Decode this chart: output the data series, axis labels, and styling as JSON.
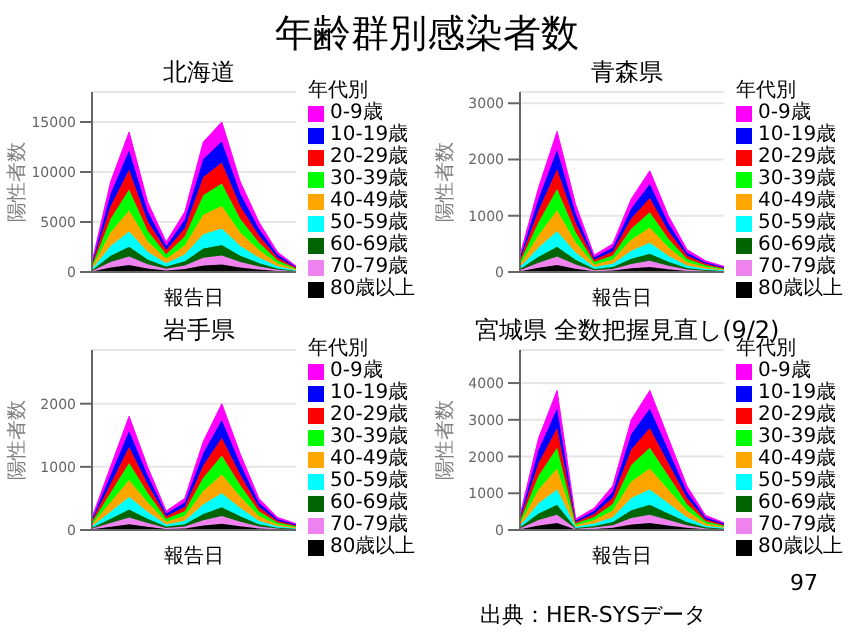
{
  "chart_data": [
    {
      "type": "other",
      "title": "年齢群別感染者数",
      "annotations": [
        "出典：HER-SYSデータ",
        "97"
      ]
    },
    {
      "type": "area",
      "title": "北海道",
      "xlabel": "報告日",
      "ylabel": "陽性者数",
      "legend_title": "年代別",
      "stacked": true,
      "grid": "y",
      "legend": "right",
      "tick_labels": "y",
      "categories": [
        null,
        null,
        null,
        null,
        null,
        null,
        null,
        null,
        null,
        null,
        null,
        null
      ],
      "ylim": [
        0,
        18000
      ],
      "yticks": [
        0,
        5000,
        10000,
        15000
      ],
      "series": [
        {
          "name": "80歳以上",
          "color": "#000000",
          "values": [
            50,
            450,
            700,
            350,
            150,
            300,
            650,
            750,
            450,
            250,
            100,
            30
          ]
        },
        {
          "name": "70-79歳",
          "color": "#ee82ee",
          "values": [
            60,
            540,
            840,
            420,
            180,
            360,
            780,
            900,
            540,
            300,
            120,
            36
          ]
        },
        {
          "name": "60-69歳",
          "color": "#006400",
          "values": [
            70,
            630,
            980,
            490,
            210,
            420,
            910,
            1050,
            630,
            350,
            140,
            42
          ]
        },
        {
          "name": "50-59歳",
          "color": "#00ffff",
          "values": [
            110,
            990,
            1540,
            770,
            330,
            660,
            1430,
            1650,
            990,
            550,
            220,
            66
          ]
        },
        {
          "name": "40-49歳",
          "color": "#ffa500",
          "values": [
            150,
            1350,
            2100,
            1050,
            450,
            900,
            1950,
            2250,
            1350,
            750,
            300,
            90
          ]
        },
        {
          "name": "30-39歳",
          "color": "#00ff00",
          "values": [
            150,
            1350,
            2100,
            1050,
            450,
            900,
            1950,
            2250,
            1350,
            750,
            300,
            90
          ]
        },
        {
          "name": "20-29歳",
          "color": "#ff0000",
          "values": [
            140,
            1260,
            1960,
            980,
            420,
            840,
            1820,
            2100,
            1260,
            700,
            280,
            84
          ]
        },
        {
          "name": "10-19歳",
          "color": "#0000ff",
          "values": [
            140,
            1260,
            1960,
            980,
            420,
            840,
            1820,
            2100,
            1260,
            700,
            280,
            84
          ]
        },
        {
          "name": "0-9歳",
          "color": "#ff00ff",
          "values": [
            130,
            1170,
            1820,
            910,
            390,
            780,
            1690,
            1950,
            1170,
            650,
            260,
            78
          ]
        }
      ]
    },
    {
      "type": "area",
      "title": "青森県",
      "xlabel": "報告日",
      "ylabel": "陽性者数",
      "legend_title": "年代別",
      "stacked": true,
      "grid": "y",
      "legend": "right",
      "tick_labels": "y",
      "categories": [
        null,
        null,
        null,
        null,
        null,
        null,
        null,
        null,
        null,
        null,
        null,
        null
      ],
      "ylim": [
        0,
        3200
      ],
      "yticks": [
        0,
        1000,
        2000,
        3000
      ],
      "series": [
        {
          "name": "80歳以上",
          "color": "#000000",
          "values": [
            15,
            75,
            125,
            60,
            15,
            25,
            65,
            90,
            50,
            20,
            10,
            5
          ]
        },
        {
          "name": "70-79歳",
          "color": "#ee82ee",
          "values": [
            18,
            90,
            150,
            72,
            18,
            30,
            78,
            108,
            60,
            24,
            12,
            6
          ]
        },
        {
          "name": "60-69歳",
          "color": "#006400",
          "values": [
            21,
            105,
            175,
            84,
            21,
            35,
            91,
            126,
            70,
            28,
            14,
            7
          ]
        },
        {
          "name": "50-59歳",
          "color": "#00ffff",
          "values": [
            33,
            165,
            275,
            132,
            33,
            55,
            143,
            198,
            110,
            44,
            22,
            11
          ]
        },
        {
          "name": "40-49歳",
          "color": "#ffa500",
          "values": [
            45,
            225,
            375,
            180,
            45,
            75,
            195,
            270,
            150,
            60,
            30,
            15
          ]
        },
        {
          "name": "30-39歳",
          "color": "#00ff00",
          "values": [
            45,
            225,
            375,
            180,
            45,
            75,
            195,
            270,
            150,
            60,
            30,
            15
          ]
        },
        {
          "name": "20-29歳",
          "color": "#ff0000",
          "values": [
            42,
            210,
            350,
            168,
            42,
            70,
            182,
            252,
            140,
            56,
            28,
            14
          ]
        },
        {
          "name": "10-19歳",
          "color": "#0000ff",
          "values": [
            42,
            210,
            350,
            168,
            42,
            70,
            182,
            252,
            140,
            56,
            28,
            14
          ]
        },
        {
          "name": "0-9歳",
          "color": "#ff00ff",
          "values": [
            39,
            195,
            325,
            156,
            39,
            65,
            169,
            234,
            130,
            52,
            26,
            13
          ]
        }
      ]
    },
    {
      "type": "area",
      "title": "岩手県",
      "xlabel": "報告日",
      "ylabel": "陽性者数",
      "legend_title": "年代別",
      "stacked": true,
      "grid": "y",
      "legend": "right",
      "tick_labels": "y",
      "categories": [
        null,
        null,
        null,
        null,
        null,
        null,
        null,
        null,
        null,
        null,
        null,
        null
      ],
      "ylim": [
        0,
        2850
      ],
      "yticks": [
        0,
        1000,
        2000
      ],
      "series": [
        {
          "name": "80歳以上",
          "color": "#000000",
          "values": [
            10,
            50,
            90,
            50,
            15,
            25,
            70,
            100,
            60,
            25,
            10,
            5
          ]
        },
        {
          "name": "70-79歳",
          "color": "#ee82ee",
          "values": [
            12,
            60,
            108,
            60,
            18,
            30,
            84,
            120,
            72,
            30,
            12,
            6
          ]
        },
        {
          "name": "60-69歳",
          "color": "#006400",
          "values": [
            14,
            70,
            126,
            70,
            21,
            35,
            98,
            140,
            84,
            35,
            14,
            7
          ]
        },
        {
          "name": "50-59歳",
          "color": "#00ffff",
          "values": [
            22,
            110,
            198,
            110,
            33,
            55,
            154,
            220,
            132,
            55,
            22,
            11
          ]
        },
        {
          "name": "40-49歳",
          "color": "#ffa500",
          "values": [
            30,
            150,
            270,
            150,
            45,
            75,
            210,
            300,
            180,
            75,
            30,
            15
          ]
        },
        {
          "name": "30-39歳",
          "color": "#00ff00",
          "values": [
            30,
            150,
            270,
            150,
            45,
            75,
            210,
            300,
            180,
            75,
            30,
            15
          ]
        },
        {
          "name": "20-29歳",
          "color": "#ff0000",
          "values": [
            28,
            140,
            252,
            140,
            42,
            70,
            196,
            280,
            168,
            70,
            28,
            14
          ]
        },
        {
          "name": "10-19歳",
          "color": "#0000ff",
          "values": [
            28,
            140,
            252,
            140,
            42,
            70,
            196,
            280,
            168,
            70,
            28,
            14
          ]
        },
        {
          "name": "0-9歳",
          "color": "#ff00ff",
          "values": [
            26,
            130,
            234,
            130,
            39,
            65,
            182,
            260,
            156,
            65,
            26,
            13
          ]
        }
      ]
    },
    {
      "type": "area",
      "title": "宮城県 全数把握見直し(9/2)",
      "xlabel": "報告日",
      "ylabel": "陽性者数",
      "legend_title": "年代別",
      "stacked": true,
      "grid": "y",
      "legend": "right",
      "tick_labels": "y",
      "categories": [
        null,
        null,
        null,
        null,
        null,
        null,
        null,
        null,
        null,
        null,
        null,
        null
      ],
      "ylim": [
        0,
        4900
      ],
      "yticks": [
        0,
        1000,
        2000,
        3000,
        4000
      ],
      "series": [
        {
          "name": "80歳以上",
          "color": "#000000",
          "values": [
            20,
            125,
            190,
            15,
            30,
            60,
            150,
            190,
            125,
            60,
            20,
            10
          ]
        },
        {
          "name": "70-79歳",
          "color": "#ee82ee",
          "values": [
            24,
            150,
            228,
            18,
            36,
            72,
            180,
            228,
            150,
            72,
            24,
            12
          ]
        },
        {
          "name": "60-69歳",
          "color": "#006400",
          "values": [
            28,
            175,
            266,
            21,
            42,
            84,
            210,
            266,
            175,
            84,
            28,
            14
          ]
        },
        {
          "name": "50-59歳",
          "color": "#00ffff",
          "values": [
            44,
            275,
            418,
            33,
            66,
            132,
            330,
            418,
            275,
            132,
            44,
            22
          ]
        },
        {
          "name": "40-49歳",
          "color": "#ffa500",
          "values": [
            60,
            375,
            570,
            45,
            90,
            180,
            450,
            570,
            375,
            180,
            60,
            30
          ]
        },
        {
          "name": "30-39歳",
          "color": "#00ff00",
          "values": [
            60,
            375,
            570,
            45,
            90,
            180,
            450,
            570,
            375,
            180,
            60,
            30
          ]
        },
        {
          "name": "20-29歳",
          "color": "#ff0000",
          "values": [
            56,
            350,
            532,
            42,
            84,
            168,
            420,
            532,
            350,
            168,
            56,
            28
          ]
        },
        {
          "name": "10-19歳",
          "color": "#0000ff",
          "values": [
            56,
            350,
            532,
            42,
            84,
            168,
            420,
            532,
            350,
            168,
            56,
            28
          ]
        },
        {
          "name": "0-9歳",
          "color": "#ff00ff",
          "values": [
            52,
            325,
            494,
            39,
            78,
            156,
            390,
            494,
            325,
            156,
            52,
            26
          ]
        }
      ]
    }
  ]
}
